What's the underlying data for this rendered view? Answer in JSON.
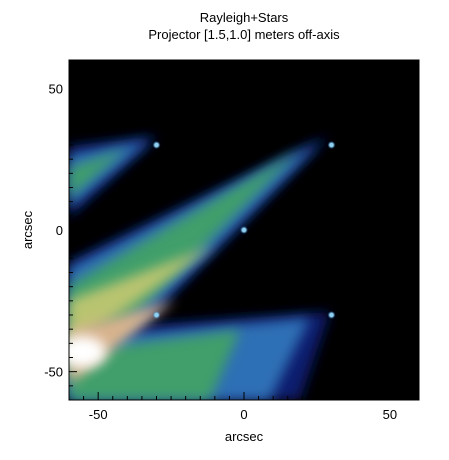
{
  "chart_data": {
    "type": "heatmap",
    "title": "Rayleigh+Stars",
    "subtitle": "Projector [1.5,1.0] meters off-axis",
    "xlabel": "arcsec",
    "ylabel": "arcsec",
    "xlim": [
      -60,
      60
    ],
    "ylim": [
      -60,
      60
    ],
    "xticks": [
      -50,
      0,
      50
    ],
    "yticks": [
      -50,
      0,
      50
    ],
    "xtick_labels": [
      "-50",
      "0",
      "50"
    ],
    "ytick_labels": [
      "-50",
      "0",
      "50"
    ],
    "minor_tick_step": 5,
    "colormap": [
      "#000000",
      "#0b1a6e",
      "#2e6fb5",
      "#3f9f6a",
      "#b9c46f",
      "#d8b28e",
      "#ffffff"
    ],
    "stars": [
      {
        "x": -30,
        "y": 30
      },
      {
        "x": 30,
        "y": 30
      },
      {
        "x": 0,
        "y": 0
      },
      {
        "x": -30,
        "y": -30
      },
      {
        "x": 30,
        "y": -30
      }
    ],
    "star_color": "#8fd0f0",
    "background_color": "#000000",
    "grid": false,
    "legend": "none"
  }
}
